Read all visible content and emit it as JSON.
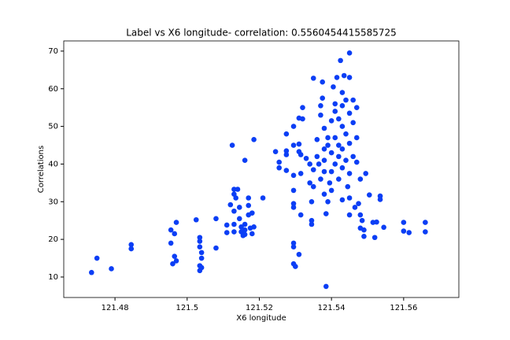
{
  "chart_data": {
    "type": "scatter",
    "title": "Label vs X6 longitude- correlation: 0.5560454415585725",
    "x_label": "X6 longitude",
    "y_label": "Correlations",
    "xlim": [
      121.4658,
      121.5753
    ],
    "ylim": [
      4.56,
      72.7
    ],
    "xticks": [
      121.48,
      121.5,
      121.52,
      121.54,
      121.56
    ],
    "yticks": [
      10,
      20,
      30,
      40,
      50,
      60,
      70
    ],
    "series": [
      {
        "color": "#0b3ef5",
        "x": [
          121.4735,
          121.475,
          121.479,
          121.4845,
          121.4845,
          121.4955,
          121.4955,
          121.496,
          121.4965,
          121.497,
          121.497,
          121.4965,
          121.5025,
          121.5035,
          121.5035,
          121.5035,
          121.504,
          121.504,
          121.5035,
          121.5035,
          121.504,
          121.508,
          121.508,
          121.511,
          121.511,
          121.512,
          121.5125,
          121.513,
          121.513,
          121.5135,
          121.513,
          121.513,
          121.513,
          121.514,
          121.5145,
          121.515,
          121.515,
          121.5155,
          121.516,
          121.516,
          121.516,
          121.517,
          121.517,
          121.517,
          121.5175,
          121.518,
          121.518,
          121.5185,
          121.5185,
          121.521,
          121.5145,
          121.516,
          121.5245,
          121.5255,
          121.5255,
          121.5275,
          121.5275,
          121.5275,
          121.5275,
          121.5295,
          121.5295,
          121.5295,
          121.5295,
          121.5295,
          121.5295,
          121.5295,
          121.5295,
          121.5295,
          121.53,
          121.531,
          121.531,
          121.531,
          121.531,
          121.5315,
          121.5315,
          121.5315,
          121.532,
          121.532,
          121.533,
          121.534,
          121.534,
          121.5345,
          121.5345,
          121.5345,
          121.535,
          121.535,
          121.535,
          121.536,
          121.536,
          121.5365,
          121.537,
          121.537,
          121.537,
          121.5375,
          121.5375,
          121.538,
          121.538,
          121.538,
          121.538,
          121.538,
          121.539,
          121.5385,
          121.5385,
          121.539,
          121.539,
          121.5395,
          121.54,
          121.54,
          121.54,
          121.54,
          121.5405,
          121.541,
          121.541,
          121.541,
          121.541,
          121.5415,
          121.542,
          121.542,
          121.542,
          121.542,
          121.5425,
          121.543,
          121.543,
          121.543,
          121.543,
          121.543,
          121.543,
          121.5435,
          121.544,
          121.544,
          121.544,
          121.5445,
          121.545,
          121.545,
          121.545,
          121.545,
          121.545,
          121.545,
          121.545,
          121.546,
          121.546,
          121.546,
          121.5465,
          121.547,
          121.547,
          121.547,
          121.5475,
          121.548,
          121.548,
          121.548,
          121.5485,
          121.549,
          121.549,
          121.5495,
          121.5505,
          121.5515,
          121.552,
          121.5525,
          121.5535,
          121.5535,
          121.5545,
          121.56,
          121.56,
          121.5615,
          121.566,
          121.566
        ],
        "values": [
          11.2,
          15,
          12.2,
          18.6,
          17.5,
          19,
          22.5,
          13.5,
          15.5,
          14.3,
          24.5,
          21.5,
          25.2,
          20.5,
          19.5,
          18,
          16.5,
          15,
          13,
          11.7,
          12.5,
          25.5,
          17.7,
          21.8,
          23.8,
          29.2,
          45,
          32,
          33.3,
          31,
          27.5,
          24,
          22,
          33.3,
          25.5,
          23.3,
          22,
          21,
          41,
          24,
          21.3,
          31,
          29,
          26.5,
          23,
          21.5,
          27,
          46.5,
          23.3,
          31,
          28.5,
          22.5,
          43.3,
          40.5,
          39,
          48,
          43.5,
          42.5,
          38.3,
          50,
          45,
          37,
          33,
          29.5,
          28.5,
          19,
          18,
          13.5,
          12.8,
          16,
          52.2,
          45.3,
          43.3,
          42.5,
          37.5,
          26.5,
          55,
          52,
          41.5,
          35,
          40,
          30,
          25,
          24,
          62.8,
          38.5,
          34,
          46.5,
          42,
          40,
          55.5,
          53,
          36,
          61.8,
          57.5,
          49.5,
          44,
          41,
          38,
          32,
          30,
          26.8,
          7.5,
          47,
          45,
          35,
          51.5,
          43,
          38,
          33,
          60.5,
          56,
          54,
          47,
          40,
          63,
          52,
          45,
          42,
          36,
          67.5,
          59,
          55.5,
          50,
          44,
          39,
          30.5,
          63.5,
          57,
          48,
          41,
          34,
          69.5,
          63,
          53.5,
          45.5,
          37.5,
          31,
          26.5,
          57,
          51,
          42,
          28.5,
          55,
          47,
          40.5,
          29.5,
          26.5,
          23,
          36,
          25,
          22.5,
          20.8,
          37.5,
          31.8,
          24.5,
          20.5,
          24.6,
          31.5,
          30.6,
          23.2,
          24.5,
          22.2,
          21.8,
          24.5,
          22
        ]
      }
    ]
  }
}
